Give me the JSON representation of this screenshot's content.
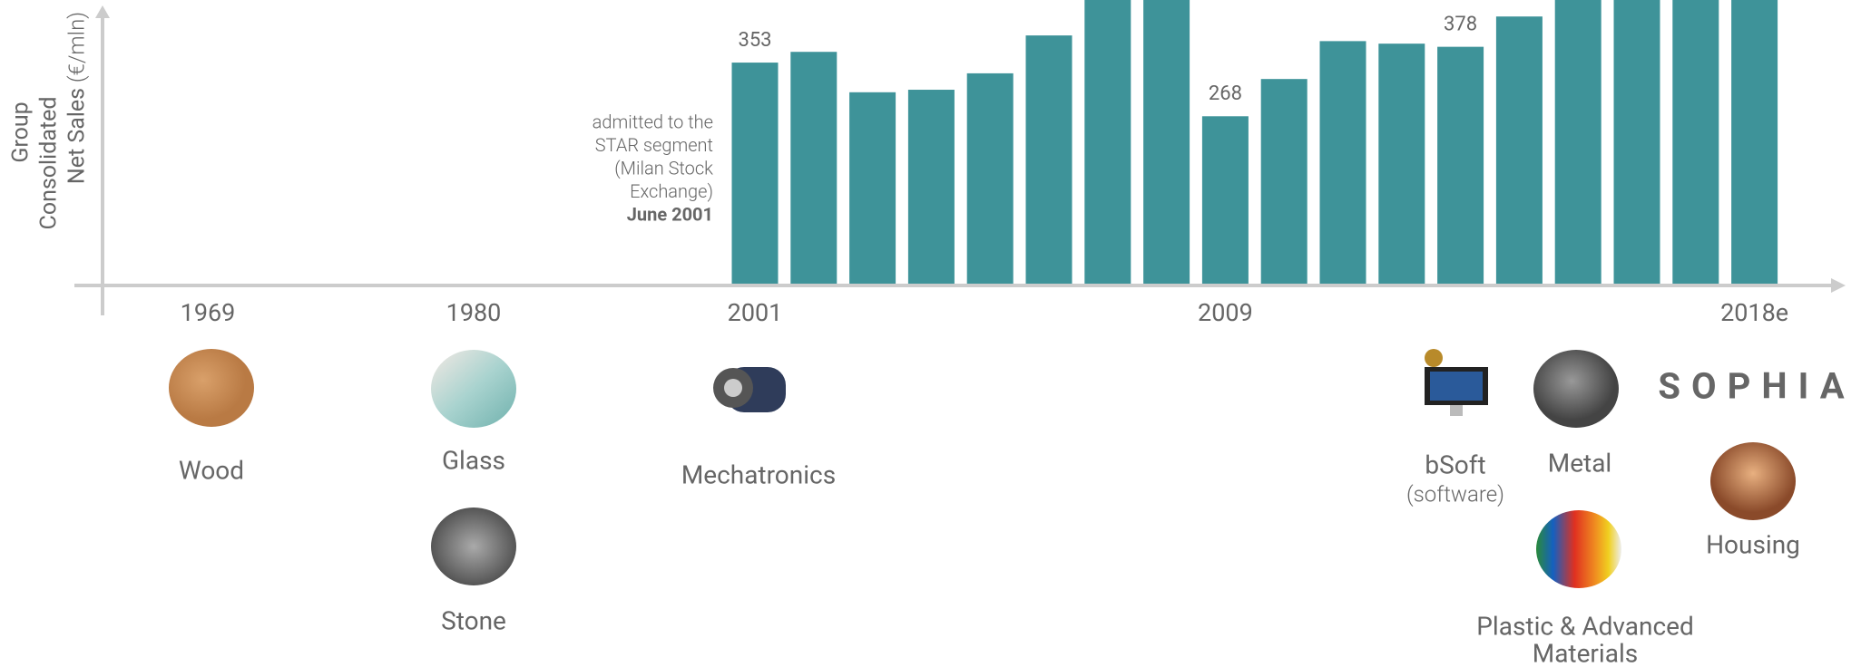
{
  "chart_data": {
    "type": "bar",
    "y_label": [
      "Group",
      "Consolidated",
      "Net Sales"
    ],
    "y_unit": "(€/mln)",
    "categories": [
      "2001",
      null,
      null,
      null,
      null,
      null,
      null,
      null,
      "2009",
      null,
      null,
      null,
      null,
      null,
      null,
      null,
      null,
      "2018e"
    ],
    "values": [
      353,
      370,
      306,
      310,
      336,
      396,
      460,
      460,
      268,
      327,
      387,
      383,
      378,
      426,
      460,
      470,
      480,
      500
    ],
    "value_labels": [
      "353",
      null,
      null,
      null,
      null,
      null,
      null,
      null,
      "268",
      null,
      null,
      null,
      "378",
      null,
      null,
      null,
      null,
      null
    ],
    "color": "#3e9399",
    "annotation": [
      "admitted to the",
      "STAR segment",
      "(Milan Stock",
      "Exchange)"
    ],
    "annotation_date": "June 2001"
  },
  "timeline_years": [
    "1969",
    "1980"
  ],
  "milestones": [
    {
      "label": [
        "Wood"
      ]
    },
    {
      "label": [
        "Glass"
      ]
    },
    {
      "label": [
        "Stone"
      ]
    },
    {
      "label": [
        "Mechatronics"
      ]
    },
    {
      "label": [
        "bSoft"
      ],
      "note": "(software)"
    },
    {
      "label": [
        "Metal"
      ]
    },
    {
      "label": [
        "Plastic & Advanced",
        "Materials"
      ]
    },
    {
      "label": [
        "Housing"
      ]
    },
    {
      "label": [
        "SOPHIA"
      ]
    }
  ]
}
